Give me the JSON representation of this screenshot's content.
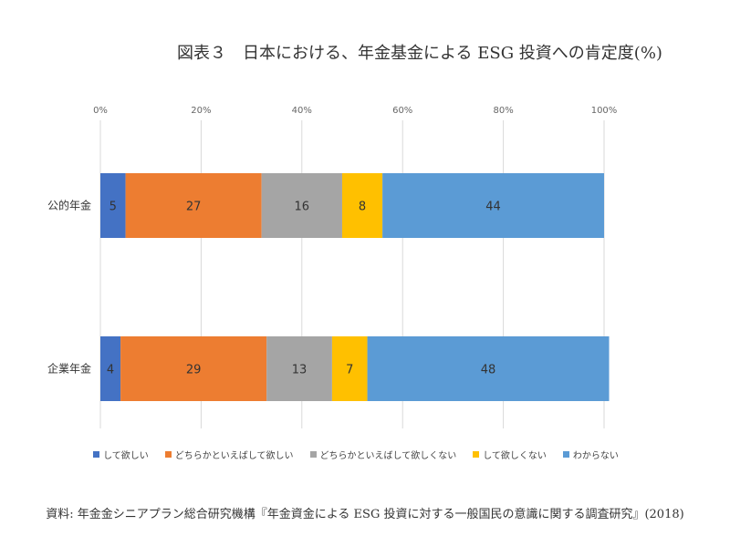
{
  "title": "図表３　日本における、年金基金による ESG 投資への肯定度(%)",
  "source": "資料: 年金金シニアプラン総合研究機構『年金資金による ESG 投資に対する一般国民の意識に関する調査研究』(2018)",
  "chart_data": {
    "type": "bar",
    "orientation": "horizontal",
    "stacked": "percent",
    "categories": [
      "公的年金",
      "企業年金"
    ],
    "series": [
      {
        "name": "して欲しい",
        "color": "#4472C4",
        "values": [
          5,
          4
        ]
      },
      {
        "name": "どちらかといえばして欲しい",
        "color": "#ED7D31",
        "values": [
          27,
          29
        ]
      },
      {
        "name": "どちらかといえばして欲しくない",
        "color": "#A5A5A5",
        "values": [
          16,
          13
        ]
      },
      {
        "name": "して欲しくない",
        "color": "#FFC000",
        "values": [
          8,
          7
        ]
      },
      {
        "name": "わからない",
        "color": "#5B9BD5",
        "values": [
          44,
          48
        ]
      }
    ],
    "xticks": [
      "0%",
      "20%",
      "40%",
      "60%",
      "80%",
      "100%"
    ],
    "xlim": [
      0,
      100
    ],
    "grid": true,
    "legend": "bottom"
  }
}
